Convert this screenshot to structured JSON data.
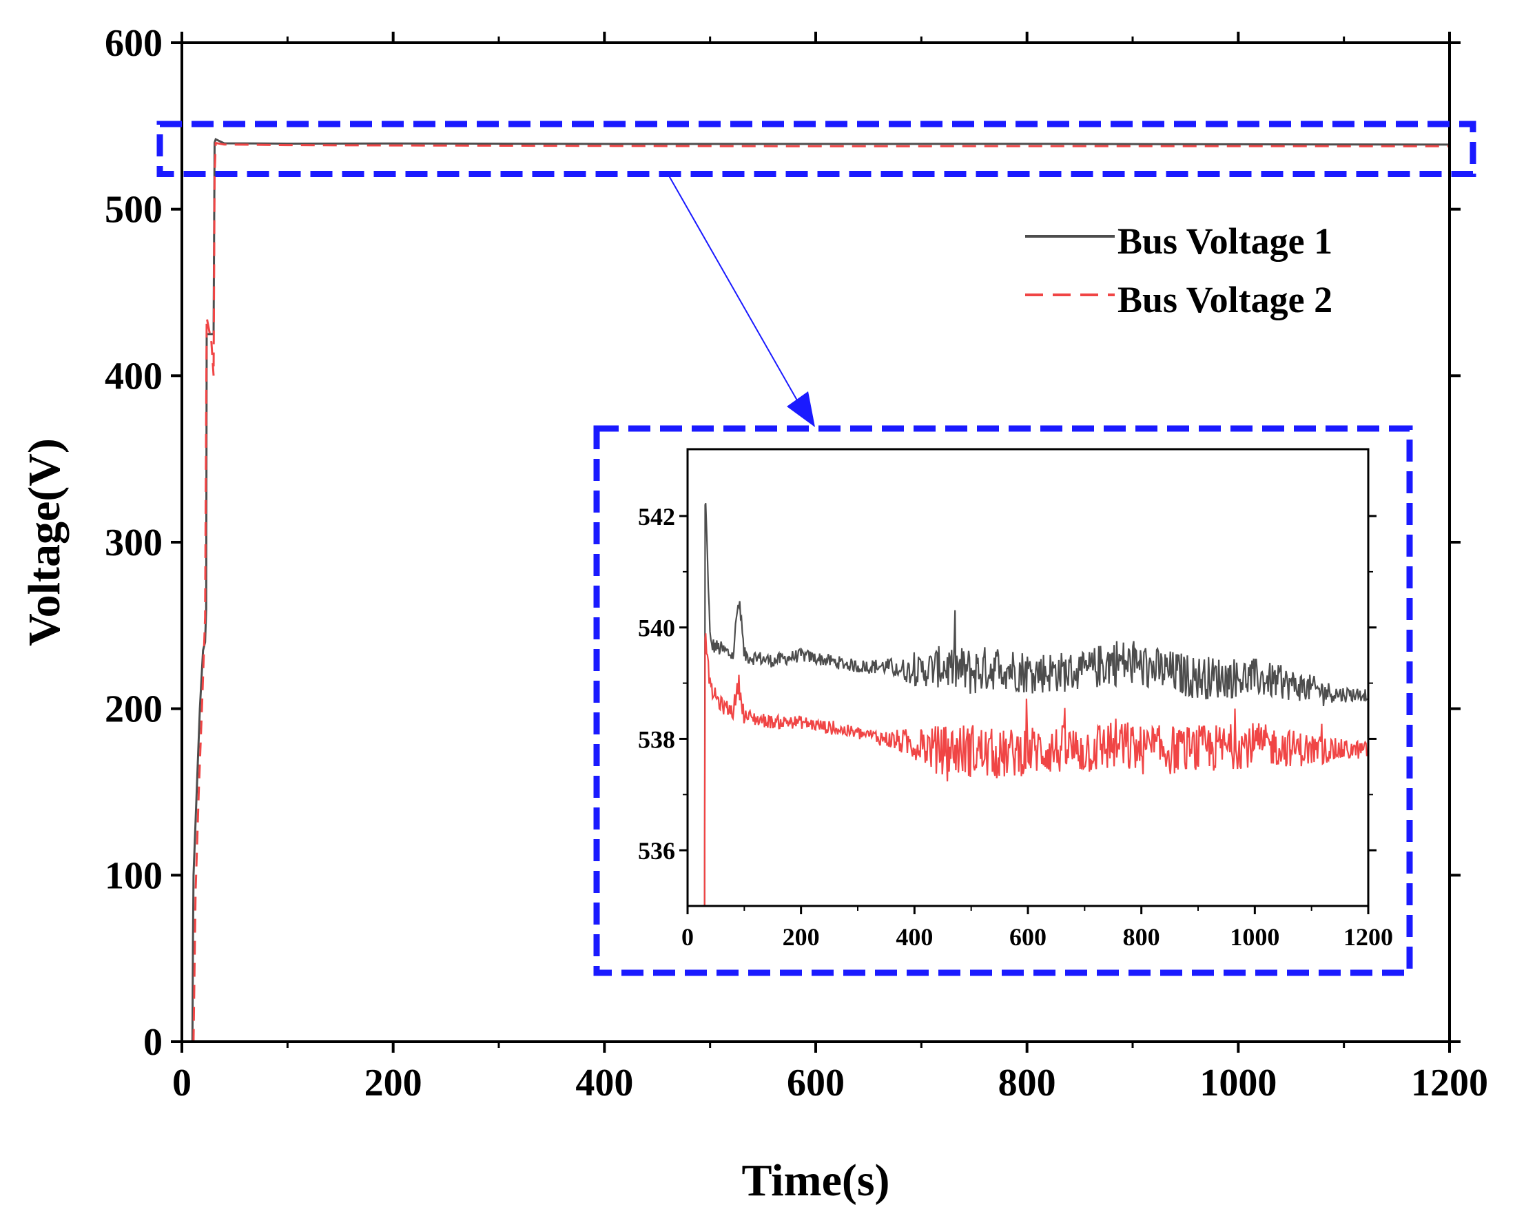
{
  "chart_data": [
    {
      "type": "line",
      "role": "main",
      "title": "",
      "xlabel": "Time(s)",
      "ylabel": "Voltage(V)",
      "xlim": [
        0,
        1200
      ],
      "ylim": [
        0,
        600
      ],
      "x_ticks": [
        "0",
        "200",
        "400",
        "600",
        "800",
        "1000",
        "1200"
      ],
      "y_ticks": [
        "0",
        "100",
        "200",
        "300",
        "400",
        "500",
        "600"
      ],
      "legend_position": "top-right",
      "series": [
        {
          "name": "Bus Voltage 1",
          "color": "#4d4d4d",
          "style": "solid",
          "x": [
            0,
            10,
            10.5,
            11,
            14,
            17,
            20,
            22,
            23,
            23.5,
            30,
            31,
            32,
            40,
            100,
            200,
            400,
            600,
            800,
            1000,
            1200
          ],
          "y": [
            0,
            0,
            60,
            100,
            150,
            200,
            235,
            240,
            260,
            425,
            425,
            540,
            542,
            539.6,
            539.4,
            539.5,
            539.2,
            539.2,
            539.3,
            539.0,
            538.8
          ]
        },
        {
          "name": "Bus Voltage 2",
          "color": "#f04545",
          "style": "dashed",
          "x": [
            10,
            11,
            13,
            16,
            19,
            22,
            23.5,
            25,
            28,
            30,
            31,
            32,
            40,
            100,
            200,
            400,
            600,
            800,
            1000,
            1200
          ],
          "y": [
            0,
            0,
            90,
            150,
            200,
            255,
            435,
            430,
            420,
            400,
            520,
            539.8,
            538.9,
            538.5,
            538.3,
            538.0,
            537.8,
            537.9,
            537.9,
            537.8
          ]
        }
      ],
      "zoom_box": {
        "x_range": [
          0,
          1200
        ],
        "y_range": [
          522,
          552
        ],
        "color": "#1a1aff"
      }
    },
    {
      "type": "line",
      "role": "inset",
      "title": "",
      "xlabel": "",
      "ylabel": "",
      "xlim": [
        0,
        1200
      ],
      "ylim": [
        535,
        543.2
      ],
      "x_ticks": [
        "0",
        "200",
        "400",
        "600",
        "800",
        "1000",
        "1200"
      ],
      "y_ticks": [
        "536",
        "538",
        "540",
        "542"
      ],
      "series": [
        {
          "name": "Bus Voltage 1",
          "color": "#4d4d4d",
          "x": [
            30,
            32,
            40,
            60,
            80,
            90,
            100,
            150,
            200,
            300,
            350,
            400,
            450,
            500,
            550,
            600,
            700,
            750,
            800,
            900,
            1000,
            1100,
            1150,
            1200
          ],
          "y": [
            535,
            542.2,
            539.7,
            539.6,
            539.5,
            540.5,
            539.5,
            539.4,
            539.5,
            539.3,
            539.3,
            539.2,
            539.3,
            539.2,
            539.3,
            539.2,
            539.2,
            539.4,
            539.3,
            539.1,
            539.1,
            538.9,
            538.8,
            538.8
          ],
          "noise_amplitude": [
            0.1,
            0.1,
            0.15,
            0.15,
            0.15,
            0.2,
            0.15,
            0.12,
            0.12,
            0.12,
            0.15,
            0.25,
            0.4,
            0.45,
            0.4,
            0.4,
            0.35,
            0.45,
            0.4,
            0.4,
            0.35,
            0.25,
            0.15,
            0.12
          ]
        },
        {
          "name": "Bus Voltage 2",
          "color": "#f04545",
          "x": [
            30,
            32,
            40,
            60,
            80,
            90,
            100,
            150,
            200,
            300,
            350,
            400,
            450,
            500,
            550,
            600,
            700,
            750,
            800,
            900,
            1000,
            1100,
            1150,
            1200
          ],
          "y": [
            535,
            539.8,
            538.9,
            538.6,
            538.5,
            539.0,
            538.4,
            538.3,
            538.3,
            538.1,
            538.0,
            537.9,
            537.8,
            537.8,
            537.7,
            537.8,
            537.8,
            537.9,
            537.8,
            537.8,
            537.9,
            537.8,
            537.8,
            537.8
          ],
          "noise_amplitude": [
            0.1,
            0.1,
            0.15,
            0.15,
            0.15,
            0.2,
            0.15,
            0.12,
            0.12,
            0.12,
            0.15,
            0.3,
            0.45,
            0.5,
            0.45,
            0.45,
            0.45,
            0.5,
            0.45,
            0.45,
            0.4,
            0.3,
            0.2,
            0.15
          ]
        }
      ]
    }
  ]
}
